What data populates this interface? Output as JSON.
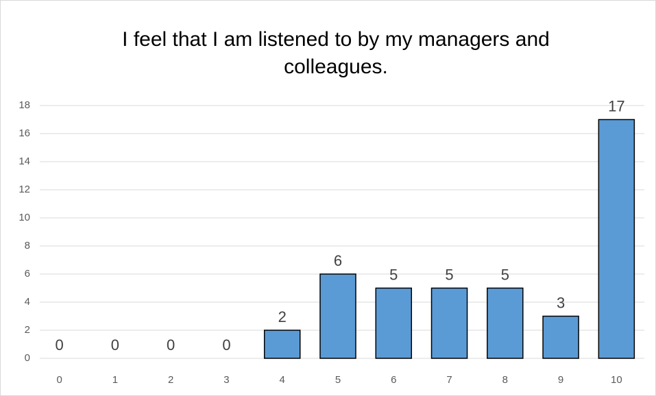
{
  "chart_data": {
    "type": "bar",
    "title": "I feel that I am listened to by my managers and colleagues.",
    "categories": [
      "0",
      "1",
      "2",
      "3",
      "4",
      "5",
      "6",
      "7",
      "8",
      "9",
      "10"
    ],
    "values": [
      0,
      0,
      0,
      0,
      2,
      6,
      5,
      5,
      5,
      3,
      17
    ],
    "color": "#5b9bd5",
    "ylim": [
      0,
      18
    ],
    "yticks": [
      0,
      2,
      4,
      6,
      8,
      10,
      12,
      14,
      16,
      18
    ],
    "grid": true
  }
}
